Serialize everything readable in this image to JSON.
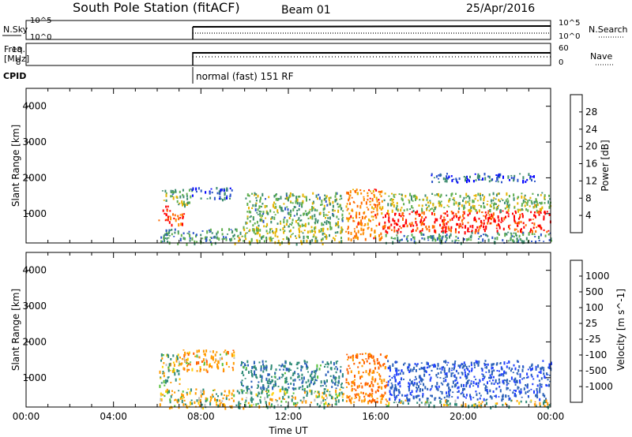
{
  "header": {
    "title": "South Pole Station (fitACF)",
    "beam": "Beam 01",
    "date": "25/Apr/2016"
  },
  "noise_panel": {
    "left_label": "N.Sky",
    "right_label": "N.Search",
    "left_ticks": [
      "10^5",
      "10^0"
    ],
    "right_ticks": [
      "10^5",
      "10^0"
    ]
  },
  "freq_panel": {
    "left_label_1": "Freq.",
    "left_label_2": "[MHz]",
    "right_label": "Nave",
    "left_ticks": [
      "18",
      "8"
    ],
    "right_ticks": [
      "60",
      "0"
    ]
  },
  "cpid": {
    "label": "CPID",
    "mode_text": "normal (fast) 151 RF"
  },
  "colors": {
    "power": [
      "#0000ff",
      "#2c55c8",
      "#3c8c6e",
      "#5fae4f",
      "#e6b400",
      "#ff8c00",
      "#ff6a00",
      "#ff0000"
    ],
    "velocity": [
      "#2040ff",
      "#2a60b8",
      "#2e8a76",
      "#56c038",
      "#c0c0c0",
      "#ffd000",
      "#ff9a00",
      "#ff6000",
      "#ff0000"
    ]
  },
  "chart_data": [
    {
      "type": "heatmap",
      "panel": "power",
      "ylabel": "Slant Range [km]",
      "ylim": [
        180,
        4500
      ],
      "y_ticks": [
        "1000",
        "2000",
        "3000",
        "4000"
      ],
      "x_ticks": [
        "00:00",
        "04:00",
        "08:00",
        "12:00",
        "16:00",
        "20:00",
        "00:00"
      ],
      "colorbar": {
        "label": "Power [dB]",
        "ticks": [
          "4",
          "8",
          "12",
          "16",
          "20",
          "24",
          "28"
        ],
        "range": [
          0,
          30
        ]
      },
      "grid": false,
      "regions": [
        {
          "t": [
            6.05,
            6.5
          ],
          "r": [
            800,
            1250
          ],
          "level": 28
        },
        {
          "t": [
            6.5,
            7.2
          ],
          "r": [
            700,
            1100
          ],
          "level": 26
        },
        {
          "t": [
            6.1,
            7.5
          ],
          "r": [
            1250,
            1700
          ],
          "level": 12
        },
        {
          "t": [
            7.5,
            9.4
          ],
          "r": [
            1400,
            1750
          ],
          "level": 6
        },
        {
          "t": [
            6.1,
            9.5
          ],
          "r": [
            180,
            600
          ],
          "level": 10
        },
        {
          "t": [
            9.5,
            14.5
          ],
          "r": [
            180,
            700
          ],
          "level": 14
        },
        {
          "t": [
            10,
            14.5
          ],
          "r": [
            700,
            1600
          ],
          "level": 12
        },
        {
          "t": [
            14.6,
            16.3
          ],
          "r": [
            300,
            1700
          ],
          "level": 22
        },
        {
          "t": [
            16.3,
            24
          ],
          "r": [
            500,
            1100
          ],
          "level": 28
        },
        {
          "t": [
            16.3,
            24
          ],
          "r": [
            1100,
            1600
          ],
          "level": 14
        },
        {
          "t": [
            16.3,
            24
          ],
          "r": [
            200,
            500
          ],
          "level": 10
        },
        {
          "t": [
            18.5,
            23.5
          ],
          "r": [
            1900,
            2150
          ],
          "level": 6
        }
      ]
    },
    {
      "type": "heatmap",
      "panel": "velocity",
      "ylabel": "Slant Range [km]",
      "ylim": [
        180,
        4500
      ],
      "y_ticks": [
        "1000",
        "2000",
        "3000",
        "4000"
      ],
      "x_ticks": [
        "00:00",
        "04:00",
        "08:00",
        "12:00",
        "16:00",
        "20:00",
        "00:00"
      ],
      "xlabel": "Time UT",
      "colorbar": {
        "label": "Velocity [m s^-1]",
        "ticks": [
          "1000",
          "500",
          "100",
          "25",
          "-25",
          "-100",
          "-500",
          "-1000"
        ],
        "range": [
          -1000,
          1000
        ]
      },
      "grid": false,
      "regions": [
        {
          "t": [
            6.05,
            7.0
          ],
          "r": [
            800,
            1700
          ],
          "level": 150
        },
        {
          "t": [
            7.0,
            9.5
          ],
          "r": [
            1200,
            1800
          ],
          "level": -250
        },
        {
          "t": [
            6.1,
            9.5
          ],
          "r": [
            180,
            700
          ],
          "level": -150
        },
        {
          "t": [
            9.5,
            14.5
          ],
          "r": [
            180,
            700
          ],
          "level": 120
        },
        {
          "t": [
            9.8,
            14.5
          ],
          "r": [
            700,
            1500
          ],
          "level": 400
        },
        {
          "t": [
            14.6,
            16.5
          ],
          "r": [
            300,
            1700
          ],
          "level": -500
        },
        {
          "t": [
            16.5,
            24
          ],
          "r": [
            400,
            1500
          ],
          "level": 900
        },
        {
          "t": [
            16.3,
            24
          ],
          "r": [
            200,
            400
          ],
          "level": 60
        }
      ]
    }
  ]
}
